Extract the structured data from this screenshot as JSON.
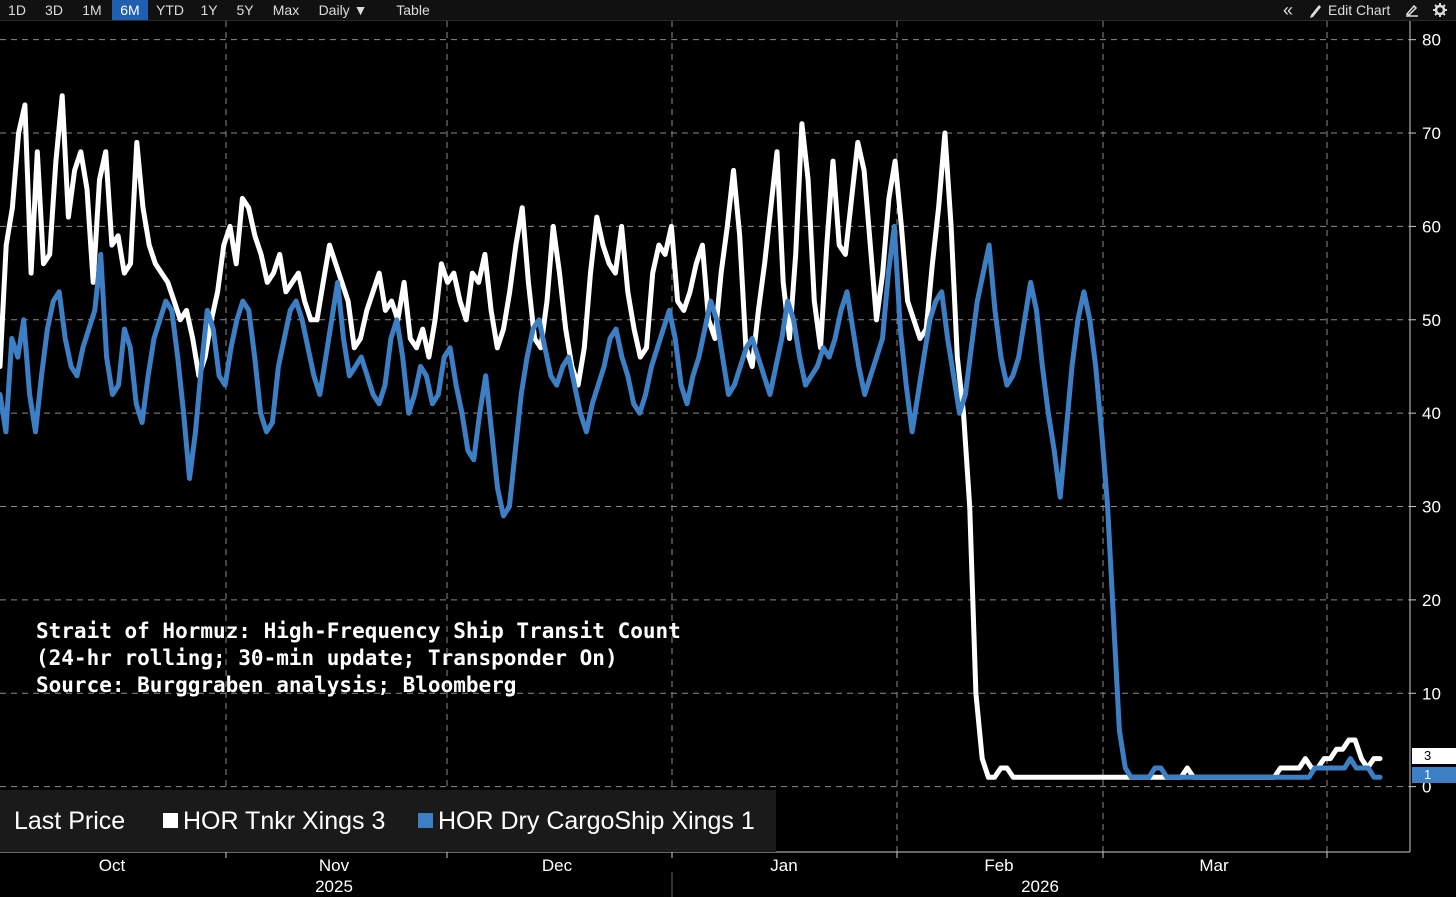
{
  "toolbar": {
    "ranges": [
      "1D",
      "3D",
      "1M",
      "6M",
      "YTD",
      "1Y",
      "5Y",
      "Max"
    ],
    "active_range": "6M",
    "frequency": "Daily ▼",
    "table_label": "Table",
    "collapse_glyph": "«",
    "edit_chart_label": "Edit Chart"
  },
  "annotation": {
    "line1": "Strait of Hormuz: High-Frequency Ship Transit Count",
    "line2": "(24-hr rolling; 30-min update; Transponder On)",
    "line3": "Source: Burggraben analysis; Bloomberg"
  },
  "legend": {
    "label": "Last Price",
    "series1": "HOR Tnkr Xings 3",
    "series2": "HOR Dry CargoShip Xings 1"
  },
  "colors": {
    "tanker": "#ffffff",
    "cargo": "#3d7fc4",
    "grid": "#8a8a8a",
    "active": "#1f5fb0"
  },
  "chart_data": {
    "type": "line",
    "x_label": "date",
    "ylim": [
      -7,
      82
    ],
    "y_ticks": [
      80,
      70,
      60,
      50,
      40,
      30,
      20,
      10,
      0
    ],
    "month_labels": [
      "Oct",
      "Nov",
      "Dec",
      "Jan",
      "Feb",
      "Mar"
    ],
    "year_labels": [
      "2025",
      "2026"
    ],
    "last_values": {
      "tanker": "3",
      "cargo": "1"
    },
    "series": [
      {
        "name": "HOR Tnkr Xings",
        "values": [
          45,
          58,
          62,
          70,
          73,
          55,
          68,
          56,
          57,
          67,
          74,
          61,
          66,
          68,
          64,
          54,
          65,
          68,
          58,
          59,
          55,
          56,
          69,
          62,
          58,
          56,
          55,
          54,
          52,
          50,
          51,
          48,
          44,
          46,
          50,
          53,
          58,
          60,
          56,
          63,
          62,
          59,
          57,
          54,
          55,
          57,
          53,
          54,
          55,
          52,
          50,
          50,
          54,
          58,
          56,
          54,
          52,
          47,
          48,
          51,
          53,
          55,
          51,
          52,
          50,
          54,
          48,
          47,
          49,
          46,
          50,
          56,
          54,
          55,
          52,
          50,
          55,
          54,
          57,
          51,
          47,
          49,
          53,
          58,
          62,
          54,
          48,
          47,
          52,
          60,
          55,
          49,
          45,
          43,
          47,
          55,
          61,
          58,
          56,
          55,
          60,
          53,
          49,
          46,
          47,
          55,
          58,
          57,
          60,
          52,
          51,
          53,
          56,
          58,
          50,
          48,
          55,
          60,
          66,
          59,
          47,
          45,
          51,
          56,
          62,
          68,
          54,
          48,
          57,
          71,
          65,
          52,
          47,
          58,
          67,
          58,
          57,
          63,
          69,
          66,
          58,
          50,
          55,
          63,
          67,
          60,
          52,
          50,
          48,
          49,
          56,
          62,
          70,
          60,
          46,
          40,
          30,
          10,
          3,
          1,
          1,
          2,
          2,
          1,
          1,
          1,
          1,
          1,
          1,
          1,
          1,
          1,
          1,
          1,
          1,
          1,
          1,
          1,
          1,
          1,
          1,
          1,
          1,
          1,
          1,
          1,
          1,
          1,
          1,
          1,
          1,
          2,
          1,
          1,
          1,
          1,
          1,
          1,
          1,
          1,
          1,
          1,
          1,
          1,
          1,
          1,
          2,
          2,
          2,
          2,
          3,
          2,
          2,
          3,
          3,
          4,
          4,
          5,
          5,
          3,
          2,
          3,
          3
        ]
      },
      {
        "name": "HOR Dry CargoShip Xings",
        "values": [
          42,
          38,
          48,
          46,
          50,
          42,
          38,
          44,
          49,
          52,
          53,
          48,
          45,
          44,
          47,
          49,
          51,
          57,
          46,
          42,
          43,
          49,
          47,
          41,
          39,
          44,
          48,
          50,
          52,
          51,
          46,
          40,
          33,
          38,
          45,
          51,
          49,
          44,
          43,
          47,
          50,
          52,
          51,
          46,
          40,
          38,
          39,
          45,
          48,
          51,
          52,
          50,
          47,
          44,
          42,
          46,
          50,
          54,
          48,
          44,
          45,
          46,
          44,
          42,
          41,
          43,
          48,
          50,
          46,
          40,
          42,
          45,
          44,
          41,
          42,
          46,
          47,
          43,
          40,
          36,
          35,
          40,
          44,
          38,
          32,
          29,
          30,
          36,
          42,
          46,
          49,
          50,
          47,
          44,
          43,
          45,
          46,
          43,
          40,
          38,
          41,
          43,
          45,
          48,
          49,
          46,
          44,
          41,
          40,
          42,
          45,
          47,
          49,
          51,
          48,
          43,
          41,
          44,
          46,
          49,
          52,
          50,
          46,
          42,
          43,
          45,
          47,
          48,
          46,
          44,
          42,
          45,
          48,
          52,
          50,
          46,
          43,
          44,
          45,
          47,
          46,
          48,
          51,
          53,
          49,
          45,
          42,
          44,
          46,
          48,
          55,
          60,
          49,
          43,
          38,
          42,
          46,
          50,
          52,
          53,
          48,
          44,
          40,
          42,
          47,
          52,
          55,
          58,
          51,
          46,
          43,
          44,
          46,
          50,
          54,
          51,
          45,
          40,
          36,
          31,
          38,
          45,
          50,
          53,
          50,
          45,
          38,
          30,
          18,
          6,
          2,
          1,
          1,
          1,
          1,
          2,
          2,
          1,
          1,
          1,
          1,
          1,
          1,
          1,
          1,
          1,
          1,
          1,
          1,
          1,
          1,
          1,
          1,
          1,
          1,
          1,
          1,
          1,
          1,
          1,
          1,
          1,
          2,
          2,
          2,
          2,
          2,
          2,
          3,
          2,
          2,
          2,
          1,
          1
        ]
      }
    ]
  }
}
